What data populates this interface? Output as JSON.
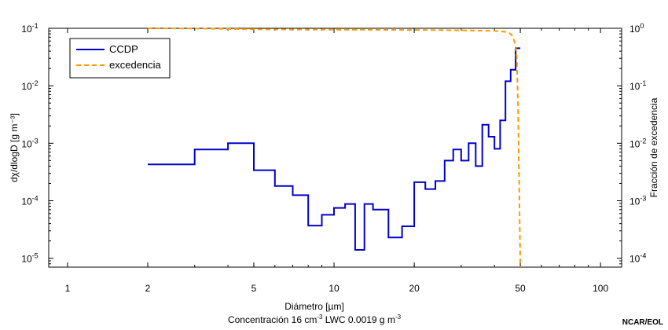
{
  "chart_data": {
    "type": "line",
    "x_scale": "log",
    "y_scale": "log",
    "xlim": [
      0.85,
      120
    ],
    "ylim": [
      7e-06,
      0.1
    ],
    "y2lim": [
      7e-05,
      1
    ],
    "x_ticks": [
      {
        "value": 1,
        "label": "1"
      },
      {
        "value": 2,
        "label": "2"
      },
      {
        "value": 5,
        "label": "5"
      },
      {
        "value": 10,
        "label": "10"
      },
      {
        "value": 20,
        "label": "20"
      },
      {
        "value": 50,
        "label": "50"
      },
      {
        "value": 100,
        "label": "100"
      }
    ],
    "y_ticks": [
      {
        "value": 0.1,
        "base": "10",
        "exp": "-1"
      },
      {
        "value": 0.01,
        "base": "10",
        "exp": "-2"
      },
      {
        "value": 0.001,
        "base": "10",
        "exp": "-3"
      },
      {
        "value": 0.0001,
        "base": "10",
        "exp": "-4"
      },
      {
        "value": 1e-05,
        "base": "10",
        "exp": "-5"
      }
    ],
    "y2_ticks": [
      {
        "value": 1,
        "base": "10",
        "exp": "0"
      },
      {
        "value": 0.1,
        "base": "10",
        "exp": "-1"
      },
      {
        "value": 0.01,
        "base": "10",
        "exp": "-2"
      },
      {
        "value": 0.001,
        "base": "10",
        "exp": "-3"
      },
      {
        "value": 0.0001,
        "base": "10",
        "exp": "-4"
      }
    ],
    "ylabel": "dχ/dlogD [g m⁻³]",
    "y2label": "Fracción de excedencia",
    "xlabel": "Diámetro  [µm]",
    "xlabel_line2": "Concentración  16 cm",
    "xlabel_line2_exp": "-3",
    "xlabel_line2_b": " LWC 0.0019 g m",
    "xlabel_line2_exp2": "-3",
    "legend": {
      "position": "top-left",
      "entries": [
        "CCDP",
        "excedencia"
      ]
    },
    "series": [
      {
        "name": "CCDP",
        "color": "#0000cc",
        "style": "step",
        "edges": [
          2,
          3,
          4,
          5,
          6,
          7,
          8,
          9,
          10,
          11,
          12,
          13,
          14,
          16,
          18,
          20,
          22,
          24,
          26,
          28,
          30,
          32,
          34,
          36,
          38,
          40,
          42,
          44,
          46,
          48,
          50
        ],
        "values": [
          0.00043,
          0.00078,
          0.001,
          0.00034,
          0.00018,
          0.000125,
          3.7e-05,
          5.7e-05,
          7.5e-05,
          8.8e-05,
          1.4e-05,
          8.8e-05,
          7e-05,
          2.3e-05,
          3.6e-05,
          0.00021,
          0.00016,
          0.00022,
          0.0005,
          0.00078,
          0.0005,
          0.001,
          0.0004,
          0.0021,
          0.0013,
          0.0008,
          0.0025,
          0.012,
          0.019,
          0.045
        ]
      },
      {
        "name": "excedencia",
        "color": "#ff9900",
        "style": "dashed",
        "axis": "right",
        "x": [
          2,
          3,
          4,
          5,
          7,
          10,
          15,
          20,
          25,
          30,
          35,
          40,
          43,
          45,
          46,
          47,
          48,
          48.5,
          49,
          49.5,
          50
        ],
        "values": [
          1.0,
          0.99,
          0.975,
          0.96,
          0.95,
          0.945,
          0.94,
          0.935,
          0.93,
          0.92,
          0.91,
          0.9,
          0.88,
          0.85,
          0.8,
          0.7,
          0.5,
          0.3,
          0.05,
          0.002,
          7e-05
        ]
      }
    ]
  },
  "credit": "NCAR/EOL"
}
